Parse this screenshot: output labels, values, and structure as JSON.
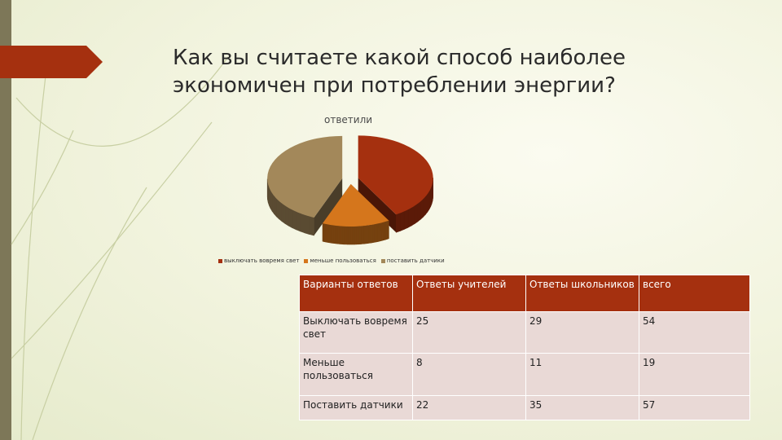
{
  "slide": {
    "title_line1": "Как вы считаете какой способ наиболее",
    "title_line2": "экономичен при потреблении энергии?"
  },
  "colors": {
    "accent": "#a5300f",
    "slice_1": "#a5300f",
    "slice_2": "#d5761c",
    "slice_3": "#a3885a",
    "left_bar": "#7d7758",
    "table_row_alt": "#e9d9d6"
  },
  "chart_data": {
    "type": "pie",
    "title": "ответили",
    "categories": [
      "выключать вовремя свет",
      "меньше пользоваться",
      "поставить датчики"
    ],
    "values": [
      54,
      19,
      57
    ],
    "legend_position": "bottom",
    "style": "3d-exploded"
  },
  "table": {
    "headers": [
      "Варианты ответов",
      "Ответы учителей",
      "Ответы школьников",
      "всего"
    ],
    "rows": [
      [
        "Выключать вовремя свет",
        "25",
        "29",
        "54"
      ],
      [
        "Меньше пользоваться",
        "8",
        "11",
        "19"
      ],
      [
        "Поставить датчики",
        "22",
        "35",
        "57"
      ]
    ]
  }
}
